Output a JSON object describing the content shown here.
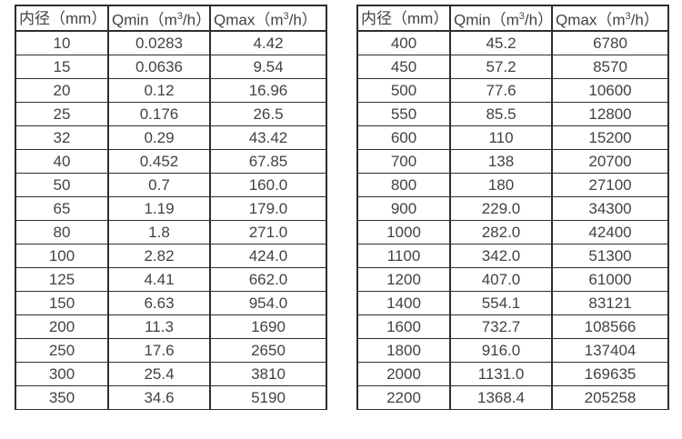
{
  "colors": {
    "text": "#424242",
    "border": "#2e2e2e",
    "background": "#ffffff"
  },
  "tables": [
    {
      "name": "flow-table-small-diameters",
      "headers": [
        "内径（mm）",
        "Qmin（m³/h）",
        "Qmax（m³/h）"
      ],
      "rows": [
        [
          "10",
          "0.0283",
          "4.42"
        ],
        [
          "15",
          "0.0636",
          "9.54"
        ],
        [
          "20",
          "0.12",
          "16.96"
        ],
        [
          "25",
          "0.176",
          "26.5"
        ],
        [
          "32",
          "0.29",
          "43.42"
        ],
        [
          "40",
          "0.452",
          "67.85"
        ],
        [
          "50",
          "0.7",
          "160.0"
        ],
        [
          "65",
          "1.19",
          "179.0"
        ],
        [
          "80",
          "1.8",
          "271.0"
        ],
        [
          "100",
          "2.82",
          "424.0"
        ],
        [
          "125",
          "4.41",
          "662.0"
        ],
        [
          "150",
          "6.63",
          "954.0"
        ],
        [
          "200",
          "11.3",
          "1690"
        ],
        [
          "250",
          "17.6",
          "2650"
        ],
        [
          "300",
          "25.4",
          "3810"
        ],
        [
          "350",
          "34.6",
          "5190"
        ]
      ]
    },
    {
      "name": "flow-table-large-diameters",
      "headers": [
        "内径（mm）",
        "Qmin（m³/h）",
        "Qmax（m³/h）"
      ],
      "rows": [
        [
          "400",
          "45.2",
          "6780"
        ],
        [
          "450",
          "57.2",
          "8570"
        ],
        [
          "500",
          "77.6",
          "10600"
        ],
        [
          "550",
          "85.5",
          "12800"
        ],
        [
          "600",
          "110",
          "15200"
        ],
        [
          "700",
          "138",
          "20700"
        ],
        [
          "800",
          "180",
          "27100"
        ],
        [
          "900",
          "229.0",
          "34300"
        ],
        [
          "1000",
          "282.0",
          "42400"
        ],
        [
          "1100",
          "342.0",
          "51300"
        ],
        [
          "1200",
          "407.0",
          "61000"
        ],
        [
          "1400",
          "554.1",
          "83121"
        ],
        [
          "1600",
          "732.7",
          "108566"
        ],
        [
          "1800",
          "916.0",
          "137404"
        ],
        [
          "2000",
          "1131.0",
          "169635"
        ],
        [
          "2200",
          "1368.4",
          "205258"
        ]
      ]
    }
  ]
}
